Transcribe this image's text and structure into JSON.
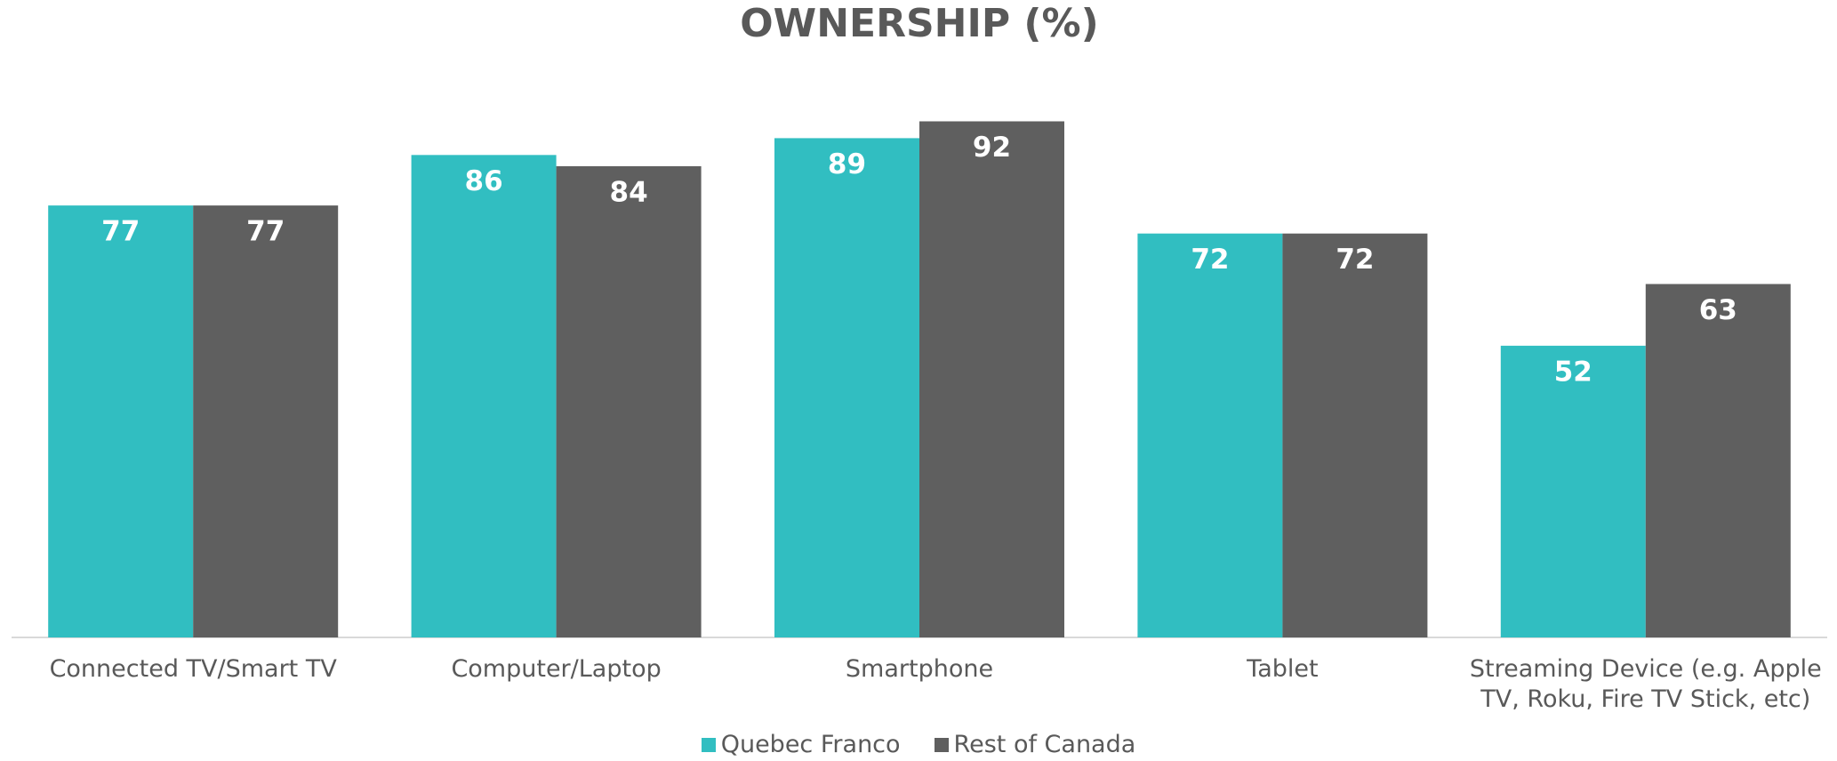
{
  "chart_data": {
    "type": "bar",
    "title": "OWNERSHIP (%)",
    "categories": [
      "Connected TV/Smart TV",
      "Computer/Laptop",
      "Smartphone",
      "Tablet",
      "Streaming Device (e.g. Apple TV, Roku, Fire TV Stick, etc)"
    ],
    "series": [
      {
        "name": "Quebec Franco",
        "color": "#31bec1",
        "values": [
          77,
          86,
          89,
          72,
          52
        ]
      },
      {
        "name": "Rest of Canada",
        "color": "#5f5f5f",
        "values": [
          77,
          84,
          92,
          72,
          63
        ]
      }
    ],
    "ylim": [
      0,
      100
    ],
    "legend": "bottom"
  }
}
